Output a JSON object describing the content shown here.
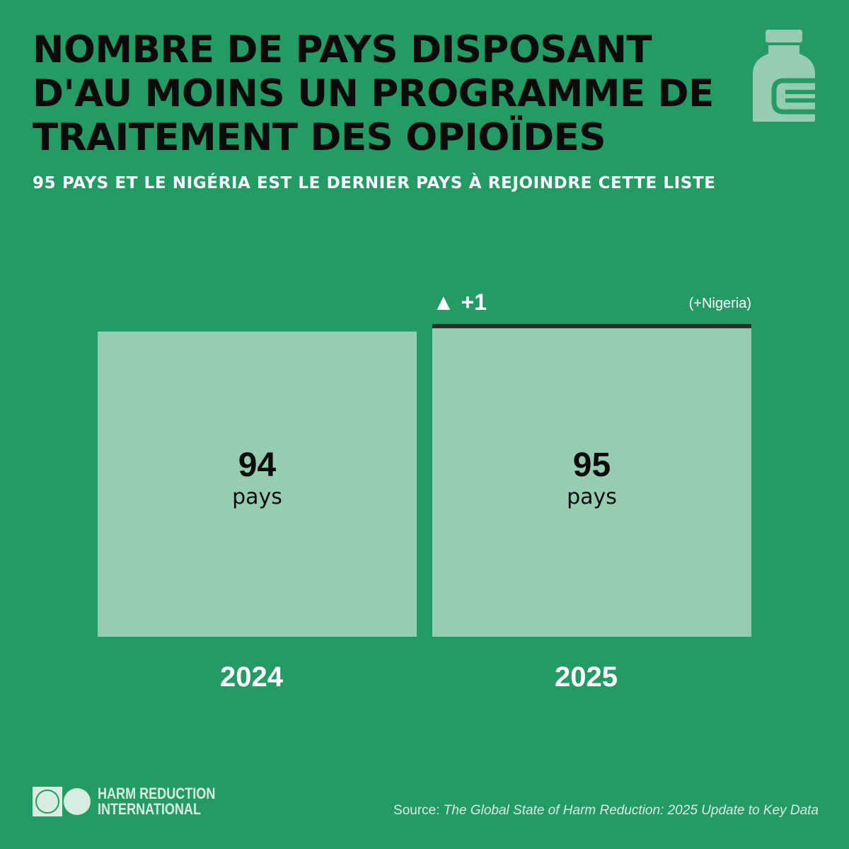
{
  "title": "NOMBRE DE PAYS DISPOSANT D'AU MOINS UN PROGRAMME DE TRAITEMENT DES OPIOÏDES",
  "subtitle": "95 PAYS ET LE NIGÉRIA EST LE DERNIER PAYS À REJOINDRE CETTE LISTE",
  "icon": "medicine-bottle-icon",
  "colors": {
    "background": "#249a64",
    "bar": "#96cdb1",
    "highlight_line": "#2d2d2d",
    "title": "#0b0b0b",
    "light_text": "#ffffff"
  },
  "chart_data": {
    "type": "bar",
    "categories": [
      "2024",
      "2025"
    ],
    "values": [
      94,
      95
    ],
    "unit": "pays",
    "value_labels": [
      "94",
      "95"
    ],
    "annotation": {
      "category": "2025",
      "symbol": "▲",
      "change": "+1",
      "note": "(+Nigeria)"
    },
    "ylim": [
      0,
      95
    ],
    "grid": false,
    "legend": "none"
  },
  "logo": {
    "line1": "HARM REDUCTION",
    "line2": "INTERNATIONAL"
  },
  "source": {
    "prefix": "Source: ",
    "text": "The Global State of Harm Reduction: 2025 Update to Key Data"
  }
}
